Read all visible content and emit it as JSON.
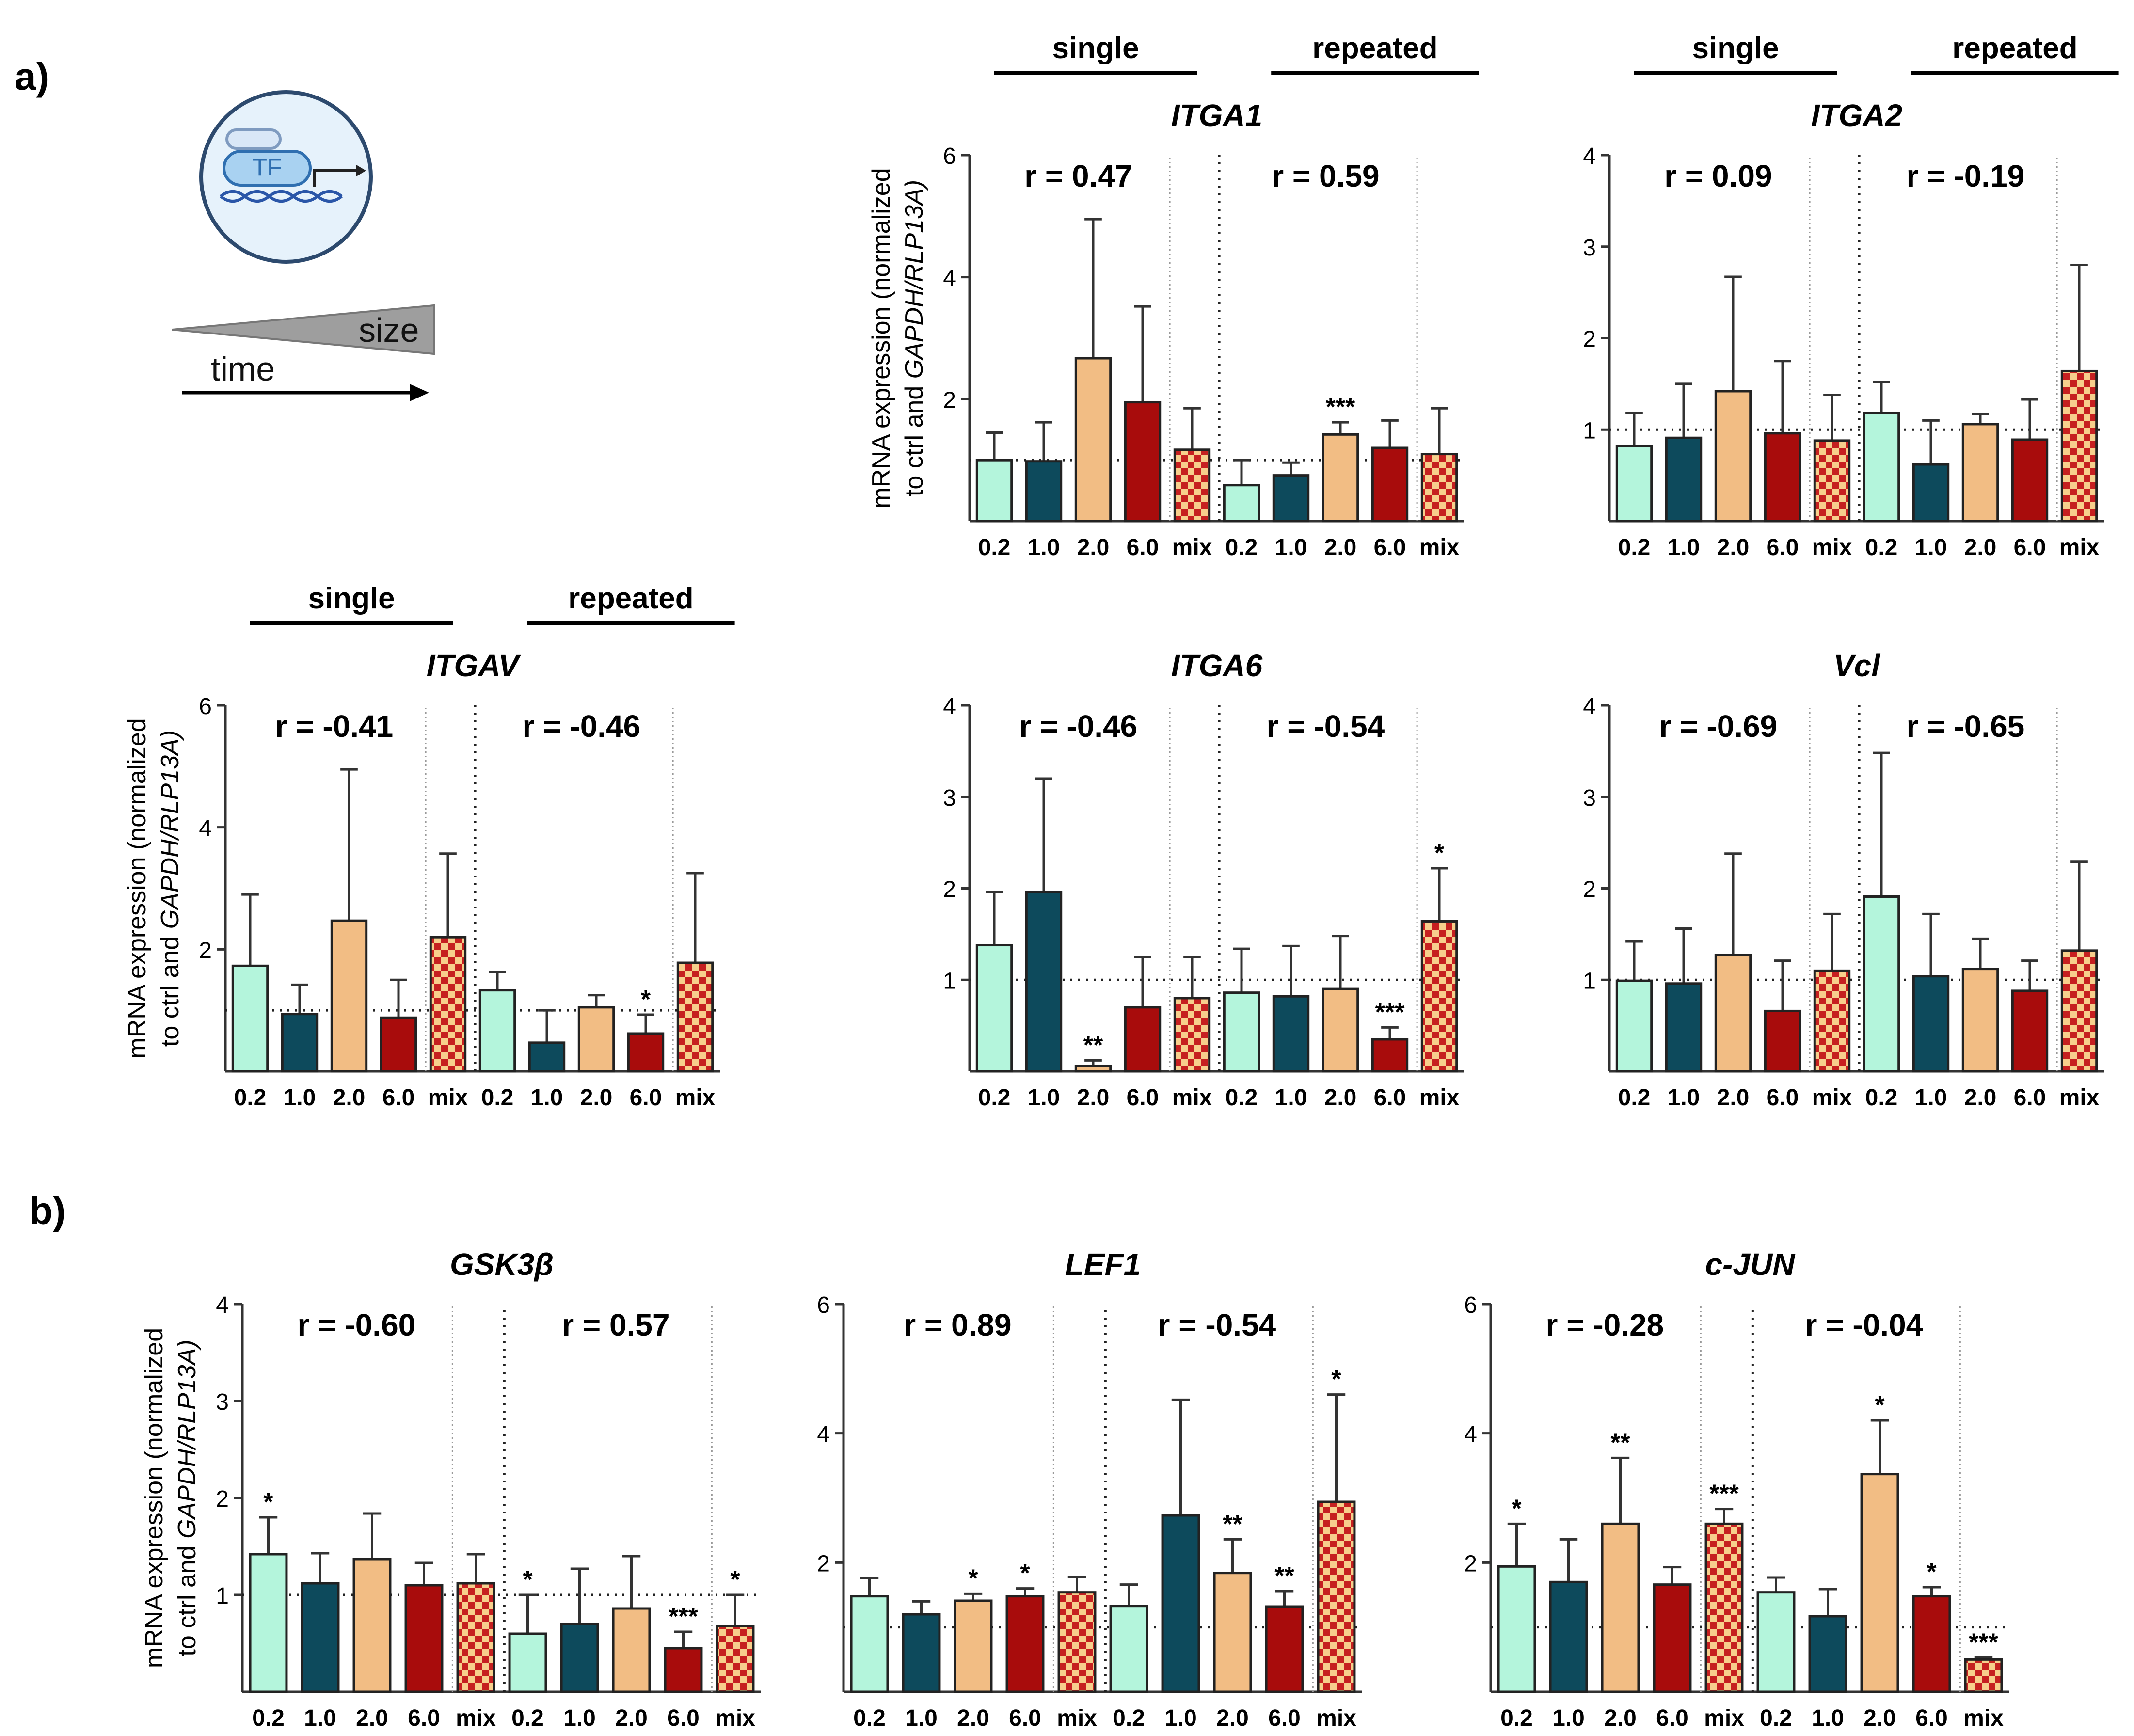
{
  "figure": {
    "panel_a_label": "a)",
    "panel_b_label": "b)",
    "ylabel_line1": "mRNA expression (normalized",
    "ylabel_line2_prefix": "to ctrl and ",
    "ylabel_line2_italic": "GAPDH/RLP13A)",
    "group_single": "single",
    "group_repeated": "repeated",
    "categories": [
      "0.2",
      "1.0",
      "2.0",
      "6.0",
      "mix",
      "0.2",
      "1.0",
      "2.0",
      "6.0",
      "mix"
    ],
    "colors": {
      "c02": "#b4f5dc",
      "c10": "#0d4a5c",
      "c20": "#f2bd84",
      "c60": "#a80c0c",
      "mix_a": "#c62020",
      "mix_b": "#f7cf8c"
    }
  },
  "icon": {
    "tf_label": "TF",
    "size_label": "size",
    "time_label": "time"
  },
  "chart_data": [
    {
      "id": "ITGA1",
      "type": "bar",
      "title": "ITGA1",
      "ylim": [
        0,
        6
      ],
      "yticks": [
        2,
        4,
        6
      ],
      "r_single": "r = 0.47",
      "r_repeated": "r = 0.59",
      "show_ylabel": true,
      "show_groups": true,
      "values": [
        1.0,
        0.98,
        2.67,
        1.95,
        1.17,
        0.59,
        0.75,
        1.42,
        1.2,
        1.1
      ],
      "errors": [
        1.45,
        1.62,
        4.95,
        3.52,
        1.85,
        1.0,
        0.96,
        1.62,
        1.65,
        1.85
      ],
      "sig": [
        "",
        "",
        "",
        "",
        "",
        "",
        "",
        "***",
        "",
        ""
      ]
    },
    {
      "id": "ITGA2",
      "type": "bar",
      "title": "ITGA2",
      "ylim": [
        0,
        4
      ],
      "yticks": [
        1,
        2,
        3,
        4
      ],
      "r_single": "r = 0.09",
      "r_repeated": "r = -0.19",
      "show_ylabel": false,
      "show_groups": true,
      "values": [
        0.82,
        0.91,
        1.42,
        0.96,
        0.88,
        1.18,
        0.62,
        1.06,
        0.89,
        1.64
      ],
      "errors": [
        1.18,
        1.5,
        2.67,
        1.75,
        1.38,
        1.52,
        1.1,
        1.17,
        1.33,
        2.8
      ],
      "sig": [
        "",
        "",
        "",
        "",
        "",
        "",
        "",
        "",
        "",
        ""
      ]
    },
    {
      "id": "ITGAV",
      "type": "bar",
      "title": "ITGAV",
      "ylim": [
        0,
        6
      ],
      "yticks": [
        2,
        4,
        6
      ],
      "r_single": "r = -0.41",
      "r_repeated": "r = -0.46",
      "show_ylabel": true,
      "show_groups": true,
      "values": [
        1.73,
        0.94,
        2.47,
        0.88,
        2.2,
        1.33,
        0.47,
        1.05,
        0.62,
        1.78
      ],
      "errors": [
        2.9,
        1.42,
        4.95,
        1.5,
        3.57,
        1.63,
        1.0,
        1.25,
        0.93,
        3.25
      ],
      "sig": [
        "",
        "",
        "",
        "",
        "",
        "",
        "",
        "",
        "*",
        ""
      ]
    },
    {
      "id": "ITGA6",
      "type": "bar",
      "title": "ITGA6",
      "ylim": [
        0,
        4
      ],
      "yticks": [
        1,
        2,
        3,
        4
      ],
      "r_single": "r = -0.46",
      "r_repeated": "r = -0.54",
      "show_ylabel": false,
      "show_groups": false,
      "values": [
        1.38,
        1.96,
        0.06,
        0.7,
        0.8,
        0.86,
        0.82,
        0.9,
        0.35,
        1.64
      ],
      "errors": [
        1.96,
        3.2,
        0.12,
        1.25,
        1.25,
        1.34,
        1.37,
        1.48,
        0.48,
        2.22
      ],
      "sig": [
        "",
        "",
        "**",
        "",
        "",
        "",
        "",
        "",
        "***",
        "*"
      ]
    },
    {
      "id": "Vcl",
      "type": "bar",
      "title": "Vcl",
      "ylim": [
        0,
        4
      ],
      "yticks": [
        1,
        2,
        3,
        4
      ],
      "r_single": "r = -0.69",
      "r_repeated": "r = -0.65",
      "show_ylabel": false,
      "show_groups": false,
      "values": [
        0.99,
        0.96,
        1.27,
        0.66,
        1.1,
        1.91,
        1.04,
        1.12,
        0.88,
        1.32
      ],
      "errors": [
        1.42,
        1.56,
        2.38,
        1.21,
        1.72,
        3.48,
        1.72,
        1.45,
        1.21,
        2.29
      ],
      "sig": [
        "",
        "",
        "",
        "",
        "",
        "",
        "",
        "",
        "",
        ""
      ]
    },
    {
      "id": "GSK3B",
      "type": "bar",
      "title": "GSK3β",
      "ylim": [
        0,
        4
      ],
      "yticks": [
        1,
        2,
        3,
        4
      ],
      "r_single": "r = -0.60",
      "r_repeated": "r = 0.57",
      "show_ylabel": true,
      "show_groups": false,
      "values": [
        1.42,
        1.12,
        1.37,
        1.1,
        1.12,
        0.6,
        0.7,
        0.86,
        0.45,
        0.68
      ],
      "errors": [
        1.8,
        1.43,
        1.84,
        1.33,
        1.42,
        1.0,
        1.27,
        1.4,
        0.62,
        1.0
      ],
      "sig": [
        "*",
        "",
        "",
        "",
        "",
        "*",
        "",
        "",
        "***",
        "*"
      ]
    },
    {
      "id": "LEF1",
      "type": "bar",
      "title": "LEF1",
      "ylim": [
        0,
        6
      ],
      "yticks": [
        2,
        4,
        6
      ],
      "r_single": "r = 0.89",
      "r_repeated": "r = -0.54",
      "show_ylabel": false,
      "show_groups": false,
      "values": [
        1.48,
        1.2,
        1.41,
        1.48,
        1.54,
        1.33,
        2.73,
        1.84,
        1.32,
        2.94
      ],
      "errors": [
        1.76,
        1.4,
        1.52,
        1.6,
        1.78,
        1.66,
        4.52,
        2.36,
        1.56,
        4.6
      ],
      "sig": [
        "",
        "",
        "*",
        "*",
        "",
        "",
        "",
        "**",
        "**",
        "*"
      ]
    },
    {
      "id": "CJUN",
      "type": "bar",
      "title": "c-JUN",
      "ylim": [
        0,
        6
      ],
      "yticks": [
        2,
        4,
        6
      ],
      "r_single": "r = -0.28",
      "r_repeated": "r = -0.04",
      "show_ylabel": false,
      "show_groups": false,
      "values": [
        1.94,
        1.7,
        2.6,
        1.66,
        2.6,
        1.54,
        1.17,
        3.37,
        1.48,
        0.5
      ],
      "errors": [
        2.6,
        2.36,
        3.62,
        1.93,
        2.83,
        1.77,
        1.59,
        4.2,
        1.62,
        0.53
      ],
      "sig": [
        "*",
        "",
        "**",
        "",
        "***",
        "",
        "",
        "*",
        "*",
        "***"
      ]
    }
  ]
}
